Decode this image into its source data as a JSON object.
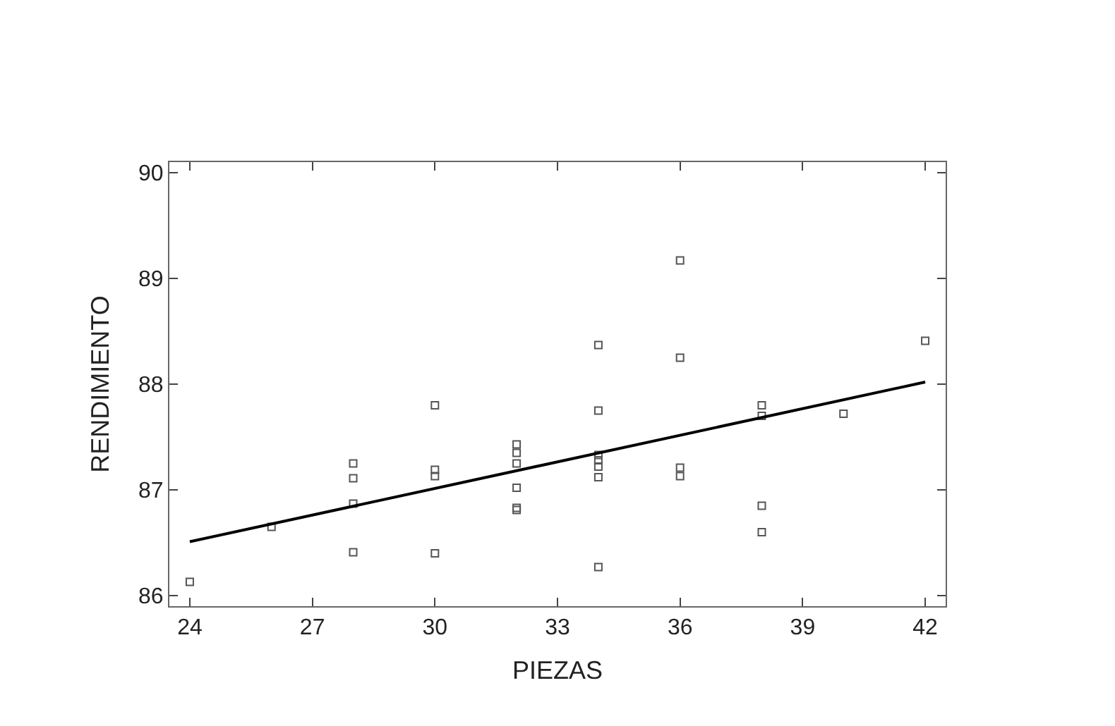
{
  "chart_data": {
    "type": "scatter",
    "xlabel": "PIEZAS",
    "ylabel": "RENDIMIENTO",
    "marker": "square",
    "legend": false,
    "xlim": [
      23.5,
      42.5
    ],
    "xticks": [
      24,
      27,
      30,
      33,
      36,
      39,
      42
    ],
    "ylim": [
      85.9,
      90.1
    ],
    "yticks": [
      86,
      87,
      88,
      89,
      90
    ],
    "series": [
      {
        "color": "#555555",
        "x": [
          24,
          26,
          28,
          28,
          28,
          28,
          30,
          30,
          30,
          30,
          32,
          32,
          32,
          32,
          32,
          32,
          34,
          34,
          34,
          34,
          34,
          34,
          34,
          36,
          36,
          36,
          36,
          38,
          38,
          38,
          38,
          40,
          42
        ],
        "values": [
          86.13,
          86.65,
          87.25,
          87.11,
          86.87,
          86.41,
          87.8,
          87.19,
          87.13,
          86.4,
          87.43,
          87.35,
          87.25,
          87.02,
          86.83,
          86.81,
          88.37,
          87.75,
          87.33,
          87.28,
          87.22,
          87.12,
          86.27,
          89.17,
          88.25,
          87.21,
          87.13,
          87.8,
          87.7,
          86.85,
          86.6,
          87.72,
          88.41
        ]
      },
      {
        "type": "line",
        "color": "#000000",
        "x": [
          24,
          42
        ],
        "values": [
          86.51,
          88.02
        ],
        "marker": "none",
        "line_style": "solid"
      }
    ]
  }
}
